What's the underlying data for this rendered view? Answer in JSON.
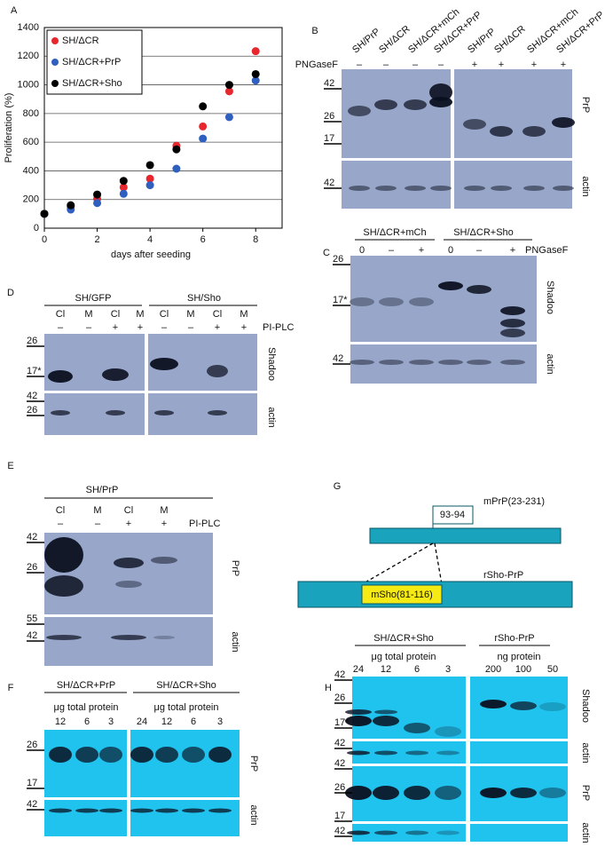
{
  "chart_data": {
    "type": "scatter",
    "panel_label": "A",
    "x_label": "days after seeding",
    "y_label": "Proliferation (%)",
    "x": [
      0,
      1,
      2,
      3,
      4,
      5,
      6,
      7,
      8
    ],
    "series": [
      {
        "name": "SH/ΔCR",
        "color": "#e8262d",
        "values": [
          100,
          150,
          205,
          285,
          345,
          575,
          710,
          955,
          1235
        ]
      },
      {
        "name": "SH/ΔCR+PrP",
        "color": "#2f5fbf",
        "values": [
          100,
          130,
          175,
          240,
          300,
          415,
          625,
          775,
          1030
        ]
      },
      {
        "name": "SH/ΔCR+Sho",
        "color": "#000000",
        "values": [
          100,
          160,
          235,
          330,
          440,
          550,
          850,
          1000,
          1075
        ]
      }
    ],
    "xlim": [
      0,
      9
    ],
    "xticks": [
      0,
      2,
      4,
      6,
      8
    ],
    "ylim": [
      0,
      1400
    ],
    "yticks": [
      0,
      200,
      400,
      600,
      800,
      1000,
      1200,
      1400
    ],
    "grid": true,
    "legend": "upper-left"
  },
  "panels": {
    "B": {
      "label": "B",
      "lanes": [
        "SH/PrP",
        "SH/ΔCR",
        "SH/ΔCR+mCh",
        "SH/ΔCR+PrP",
        "SH/PrP",
        "SH/ΔCR",
        "SH/ΔCR+mCh",
        "SH/ΔCR+PrP"
      ],
      "treatment": "PNGaseF",
      "signs": [
        "–",
        "–",
        "–",
        "–",
        "+",
        "+",
        "+",
        "+"
      ],
      "markers": [
        "42",
        "26",
        "17",
        "42"
      ],
      "bands": [
        "PrP",
        "actin"
      ]
    },
    "C": {
      "label": "C",
      "groups": [
        "SH/ΔCR+mCh",
        "SH/ΔCR+Sho"
      ],
      "lanes": [
        "0",
        "–",
        "+",
        "0",
        "–",
        "+"
      ],
      "treatment": "PNGaseF",
      "markers": [
        "26",
        "17*",
        "42"
      ],
      "bands": [
        "Shadoo",
        "actin"
      ]
    },
    "D": {
      "label": "D",
      "groups": [
        "SH/GFP",
        "SH/Sho"
      ],
      "lanes": [
        "Cl",
        "M",
        "Cl",
        "M",
        "Cl",
        "M",
        "Cl",
        "M"
      ],
      "signs": [
        "–",
        "–",
        "+",
        "+",
        "–",
        "–",
        "+",
        "+"
      ],
      "treatment": "PI-PLC",
      "markers": [
        "26",
        "17*",
        "42",
        "26"
      ],
      "bands": [
        "Shadoo",
        "actin"
      ]
    },
    "E": {
      "label": "E",
      "group": "SH/PrP",
      "lanes": [
        "Cl",
        "M",
        "Cl",
        "M"
      ],
      "signs": [
        "–",
        "–",
        "+",
        "+"
      ],
      "treatment": "PI-PLC",
      "markers": [
        "42",
        "26",
        "55",
        "42"
      ],
      "bands": [
        "PrP",
        "actin"
      ]
    },
    "F": {
      "label": "F",
      "groups": [
        "SH/ΔCR+PrP",
        "SH/ΔCR+Sho"
      ],
      "units": [
        "μg total protein",
        "μg total protein"
      ],
      "lanes": [
        "12",
        "6",
        "3",
        "24",
        "12",
        "6",
        "3"
      ],
      "markers": [
        "26",
        "17",
        "42"
      ],
      "bands": [
        "PrP",
        "actin"
      ]
    },
    "G": {
      "label": "G",
      "site": "93-94",
      "top": "mPrP(23-231)",
      "bottom": "rSho-PrP",
      "insert": "mSho(81-116)"
    },
    "H": {
      "label": "H",
      "groups": [
        "SH/ΔCR+Sho",
        "rSho-PrP"
      ],
      "units": [
        "μg total protein",
        "ng protein"
      ],
      "lanes": [
        "24",
        "12",
        "6",
        "3",
        "200",
        "100",
        "50"
      ],
      "markers": [
        "42",
        "26",
        "17*",
        "42",
        "42",
        "26",
        "17",
        "42"
      ],
      "bands": [
        "Shadoo",
        "actin",
        "PrP",
        "actin"
      ]
    }
  }
}
